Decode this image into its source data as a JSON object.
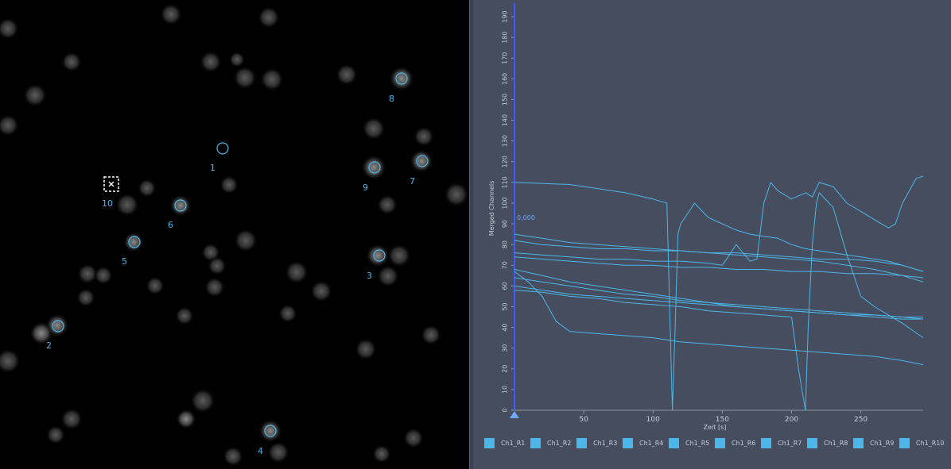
{
  "image_panel": {
    "rois": [
      {
        "label": "1",
        "shape": "circle"
      },
      {
        "label": "2",
        "shape": "circle"
      },
      {
        "label": "3",
        "shape": "circle"
      },
      {
        "label": "4",
        "shape": "circle"
      },
      {
        "label": "5",
        "shape": "circle"
      },
      {
        "label": "6",
        "shape": "circle"
      },
      {
        "label": "7",
        "shape": "circle"
      },
      {
        "label": "8",
        "shape": "circle"
      },
      {
        "label": "9",
        "shape": "circle"
      },
      {
        "label": "10",
        "shape": "square-selected"
      }
    ],
    "roi_color": "#4fb3e6",
    "selected_icon": "close-x-icon"
  },
  "chart_data": {
    "type": "line",
    "title": "",
    "xlabel": "Zeit [s]",
    "ylabel": "Merged Channels",
    "xlim": [
      0,
      295
    ],
    "ylim": [
      0,
      195
    ],
    "xticks": [
      50,
      100,
      150,
      200,
      250
    ],
    "yticks": [
      0,
      10,
      20,
      30,
      40,
      50,
      60,
      70,
      80,
      90,
      100,
      110,
      120,
      130,
      140,
      150,
      160,
      170,
      180,
      190
    ],
    "cursor_value": "0,000",
    "grid": false,
    "legend_position": "bottom",
    "line_color": "#4db6e8",
    "series": [
      {
        "name": "Ch1_R1",
        "x": [
          0,
          40,
          80,
          100,
          110,
          114,
          116,
          118,
          120,
          125,
          130,
          140,
          150,
          160,
          170,
          180,
          190,
          200,
          210,
          220,
          230,
          240,
          250,
          260,
          270,
          280,
          290,
          295
        ],
        "values": [
          110,
          109,
          105,
          102,
          100,
          0,
          40,
          85,
          90,
          95,
          100,
          93,
          90,
          87,
          85,
          84,
          83,
          80,
          78,
          77,
          76,
          75,
          74,
          73,
          72,
          70,
          68,
          67
        ]
      },
      {
        "name": "Ch1_R2",
        "x": [
          0,
          10,
          20,
          30,
          40,
          60,
          80,
          100,
          120,
          140,
          160,
          180,
          200,
          220,
          240,
          260,
          280,
          295
        ],
        "values": [
          67,
          62,
          55,
          43,
          38,
          37,
          36,
          35,
          33,
          32,
          31,
          30,
          29,
          28,
          27,
          26,
          24,
          22
        ]
      },
      {
        "name": "Ch1_R3",
        "x": [
          0,
          20,
          40,
          60,
          80,
          100,
          120,
          140,
          160,
          180,
          200,
          220,
          240,
          260,
          280,
          295
        ],
        "values": [
          60,
          58,
          56,
          55,
          54,
          53,
          52,
          51,
          50,
          49,
          48,
          47,
          46,
          46,
          45,
          44
        ]
      },
      {
        "name": "Ch1_R4",
        "x": [
          0,
          20,
          40,
          60,
          80,
          100,
          120,
          140,
          160,
          180,
          200,
          205,
          210,
          212,
          215,
          218,
          220,
          230,
          240,
          250,
          260,
          280,
          295
        ],
        "values": [
          58,
          57,
          55,
          54,
          52,
          51,
          50,
          48,
          47,
          46,
          45,
          20,
          0,
          40,
          80,
          100,
          105,
          98,
          75,
          55,
          50,
          42,
          35
        ]
      },
      {
        "name": "Ch1_R5",
        "x": [
          0,
          20,
          40,
          60,
          80,
          100,
          120,
          140,
          160,
          180,
          200,
          220,
          240,
          260,
          280,
          295
        ],
        "values": [
          68,
          65,
          62,
          60,
          58,
          56,
          54,
          52,
          51,
          50,
          49,
          48,
          47,
          46,
          45,
          45
        ]
      },
      {
        "name": "Ch1_R6",
        "x": [
          0,
          20,
          40,
          60,
          80,
          100,
          120,
          140,
          160,
          180,
          200,
          220,
          240,
          260,
          280,
          295
        ],
        "values": [
          64,
          62,
          60,
          58,
          56,
          55,
          53,
          52,
          50,
          49,
          48,
          47,
          46,
          45,
          44,
          44
        ]
      },
      {
        "name": "Ch1_R7",
        "x": [
          0,
          20,
          40,
          60,
          80,
          100,
          120,
          140,
          160,
          180,
          200,
          220,
          240,
          260,
          280,
          295
        ],
        "values": [
          82,
          80,
          79,
          78,
          78,
          77,
          77,
          76,
          76,
          75,
          74,
          73,
          73,
          72,
          70,
          67
        ]
      },
      {
        "name": "Ch1_R8",
        "x": [
          0,
          20,
          40,
          60,
          80,
          100,
          120,
          140,
          150,
          160,
          170,
          175,
          180,
          185,
          190,
          200,
          210,
          215,
          220,
          230,
          240,
          250,
          260,
          270,
          275,
          280,
          290,
          295
        ],
        "values": [
          76,
          75,
          74,
          73,
          73,
          72,
          72,
          71,
          70,
          80,
          72,
          73,
          100,
          110,
          106,
          102,
          105,
          103,
          110,
          108,
          100,
          96,
          92,
          88,
          90,
          100,
          112,
          113
        ]
      },
      {
        "name": "Ch1_R9",
        "x": [
          0,
          20,
          40,
          60,
          80,
          100,
          120,
          140,
          160,
          180,
          200,
          220,
          240,
          260,
          280,
          295
        ],
        "values": [
          85,
          83,
          81,
          80,
          79,
          78,
          77,
          76,
          75,
          74,
          73,
          72,
          70,
          68,
          65,
          62
        ]
      },
      {
        "name": "Ch1_R10",
        "x": [
          0,
          20,
          40,
          60,
          80,
          100,
          120,
          140,
          160,
          180,
          200,
          220,
          240,
          260,
          280,
          295
        ],
        "values": [
          74,
          73,
          72,
          71,
          70,
          70,
          69,
          69,
          68,
          68,
          67,
          67,
          66,
          66,
          65,
          64
        ]
      }
    ]
  }
}
